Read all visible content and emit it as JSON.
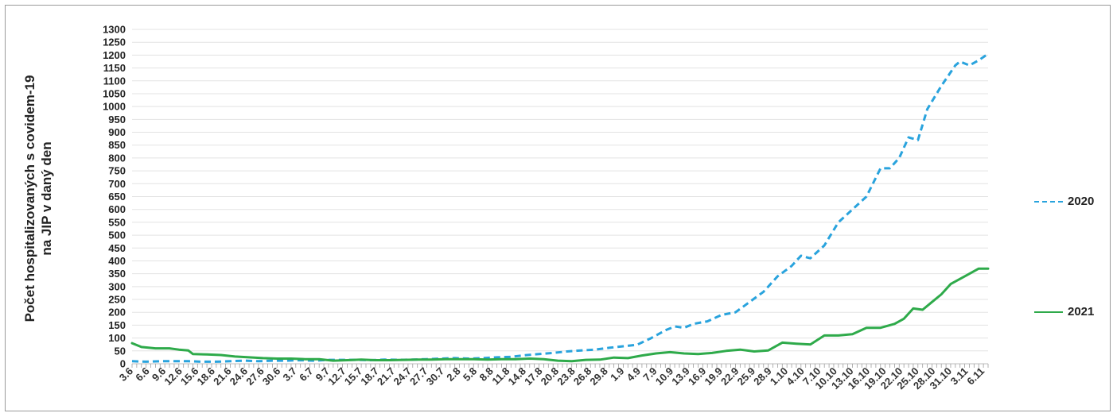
{
  "chart_data": {
    "type": "line",
    "title": "",
    "ylabel": [
      "Počet hospitalizovaných s covidem-19",
      "na JIP v daný den"
    ],
    "xlabel": "",
    "ylim": [
      0,
      1300
    ],
    "y_ticks": [
      0,
      50,
      100,
      150,
      200,
      250,
      300,
      350,
      400,
      450,
      500,
      550,
      600,
      650,
      700,
      750,
      800,
      850,
      900,
      950,
      1000,
      1050,
      1100,
      1150,
      1200,
      1250,
      1300
    ],
    "grid": true,
    "legend_position": "right",
    "x_tick_labels": [
      "3.6",
      "6.6",
      "9.6",
      "12.6",
      "15.6",
      "18.6",
      "21.6",
      "24.6",
      "27.6",
      "30.6",
      "3.7",
      "6.7",
      "9.7",
      "12.7",
      "15.7",
      "18.7",
      "21.7",
      "24.7",
      "27.7",
      "30.7",
      "2.8",
      "5.8",
      "8.8",
      "11.8",
      "14.8",
      "17.8",
      "20.8",
      "23.8",
      "26.8",
      "29.8",
      "1.9",
      "4.9",
      "7.9",
      "10.9",
      "13.9",
      "16.9",
      "19.9",
      "22.9",
      "25.9",
      "28.9",
      "1.10",
      "4.10",
      "7.10",
      "10.10",
      "13.10",
      "16.10",
      "19.10",
      "22.10",
      "25.10",
      "28.10",
      "31.10",
      "3.11",
      "6.11"
    ],
    "series": [
      {
        "name": "2020",
        "color": "#29a3dd",
        "dash": "dashed",
        "points": [
          [
            0,
            10
          ],
          [
            3,
            8
          ],
          [
            6,
            10
          ],
          [
            9,
            10
          ],
          [
            12,
            10
          ],
          [
            15,
            8
          ],
          [
            18,
            8
          ],
          [
            21,
            10
          ],
          [
            24,
            12
          ],
          [
            27,
            10
          ],
          [
            30,
            12
          ],
          [
            33,
            12
          ],
          [
            36,
            14
          ],
          [
            39,
            12
          ],
          [
            42,
            15
          ],
          [
            45,
            15
          ],
          [
            48,
            15
          ],
          [
            51,
            14
          ],
          [
            54,
            16
          ],
          [
            57,
            15
          ],
          [
            60,
            16
          ],
          [
            63,
            18
          ],
          [
            66,
            20
          ],
          [
            69,
            22
          ],
          [
            72,
            20
          ],
          [
            75,
            22
          ],
          [
            78,
            25
          ],
          [
            81,
            27
          ],
          [
            84,
            33
          ],
          [
            87,
            38
          ],
          [
            90,
            42
          ],
          [
            93,
            48
          ],
          [
            96,
            52
          ],
          [
            99,
            55
          ],
          [
            102,
            62
          ],
          [
            105,
            68
          ],
          [
            108,
            74
          ],
          [
            111,
            100
          ],
          [
            114,
            130
          ],
          [
            116,
            145
          ],
          [
            118,
            140
          ],
          [
            120,
            155
          ],
          [
            123,
            165
          ],
          [
            126,
            190
          ],
          [
            129,
            200
          ],
          [
            132,
            240
          ],
          [
            135,
            280
          ],
          [
            138,
            340
          ],
          [
            141,
            380
          ],
          [
            143,
            420
          ],
          [
            145,
            410
          ],
          [
            148,
            460
          ],
          [
            151,
            550
          ],
          [
            154,
            600
          ],
          [
            157,
            650
          ],
          [
            160,
            760
          ],
          [
            162,
            760
          ],
          [
            164,
            800
          ],
          [
            166,
            880
          ],
          [
            168,
            870
          ],
          [
            170,
            990
          ],
          [
            173,
            1080
          ],
          [
            176,
            1160
          ],
          [
            177,
            1175
          ],
          [
            179,
            1160
          ],
          [
            181,
            1180
          ],
          [
            183,
            1205
          ]
        ]
      },
      {
        "name": "2021",
        "color": "#2eaa4a",
        "dash": "solid",
        "points": [
          [
            0,
            80
          ],
          [
            2,
            65
          ],
          [
            5,
            60
          ],
          [
            8,
            60
          ],
          [
            10,
            55
          ],
          [
            12,
            52
          ],
          [
            13,
            38
          ],
          [
            16,
            36
          ],
          [
            19,
            34
          ],
          [
            22,
            28
          ],
          [
            25,
            25
          ],
          [
            28,
            22
          ],
          [
            31,
            20
          ],
          [
            34,
            20
          ],
          [
            37,
            18
          ],
          [
            40,
            18
          ],
          [
            43,
            12
          ],
          [
            46,
            14
          ],
          [
            49,
            16
          ],
          [
            52,
            14
          ],
          [
            55,
            14
          ],
          [
            58,
            15
          ],
          [
            61,
            16
          ],
          [
            64,
            16
          ],
          [
            67,
            18
          ],
          [
            70,
            18
          ],
          [
            73,
            18
          ],
          [
            76,
            16
          ],
          [
            79,
            18
          ],
          [
            82,
            18
          ],
          [
            85,
            20
          ],
          [
            88,
            18
          ],
          [
            91,
            12
          ],
          [
            94,
            10
          ],
          [
            97,
            15
          ],
          [
            100,
            16
          ],
          [
            103,
            24
          ],
          [
            106,
            22
          ],
          [
            109,
            32
          ],
          [
            112,
            40
          ],
          [
            115,
            45
          ],
          [
            118,
            40
          ],
          [
            121,
            38
          ],
          [
            124,
            42
          ],
          [
            127,
            50
          ],
          [
            130,
            55
          ],
          [
            133,
            48
          ],
          [
            136,
            52
          ],
          [
            139,
            82
          ],
          [
            142,
            78
          ],
          [
            145,
            75
          ],
          [
            148,
            110
          ],
          [
            151,
            110
          ],
          [
            154,
            115
          ],
          [
            157,
            140
          ],
          [
            160,
            140
          ],
          [
            163,
            155
          ],
          [
            165,
            175
          ],
          [
            167,
            215
          ],
          [
            169,
            210
          ],
          [
            171,
            240
          ],
          [
            173,
            270
          ],
          [
            175,
            310
          ],
          [
            178,
            340
          ],
          [
            181,
            370
          ],
          [
            183,
            370
          ]
        ]
      }
    ]
  }
}
